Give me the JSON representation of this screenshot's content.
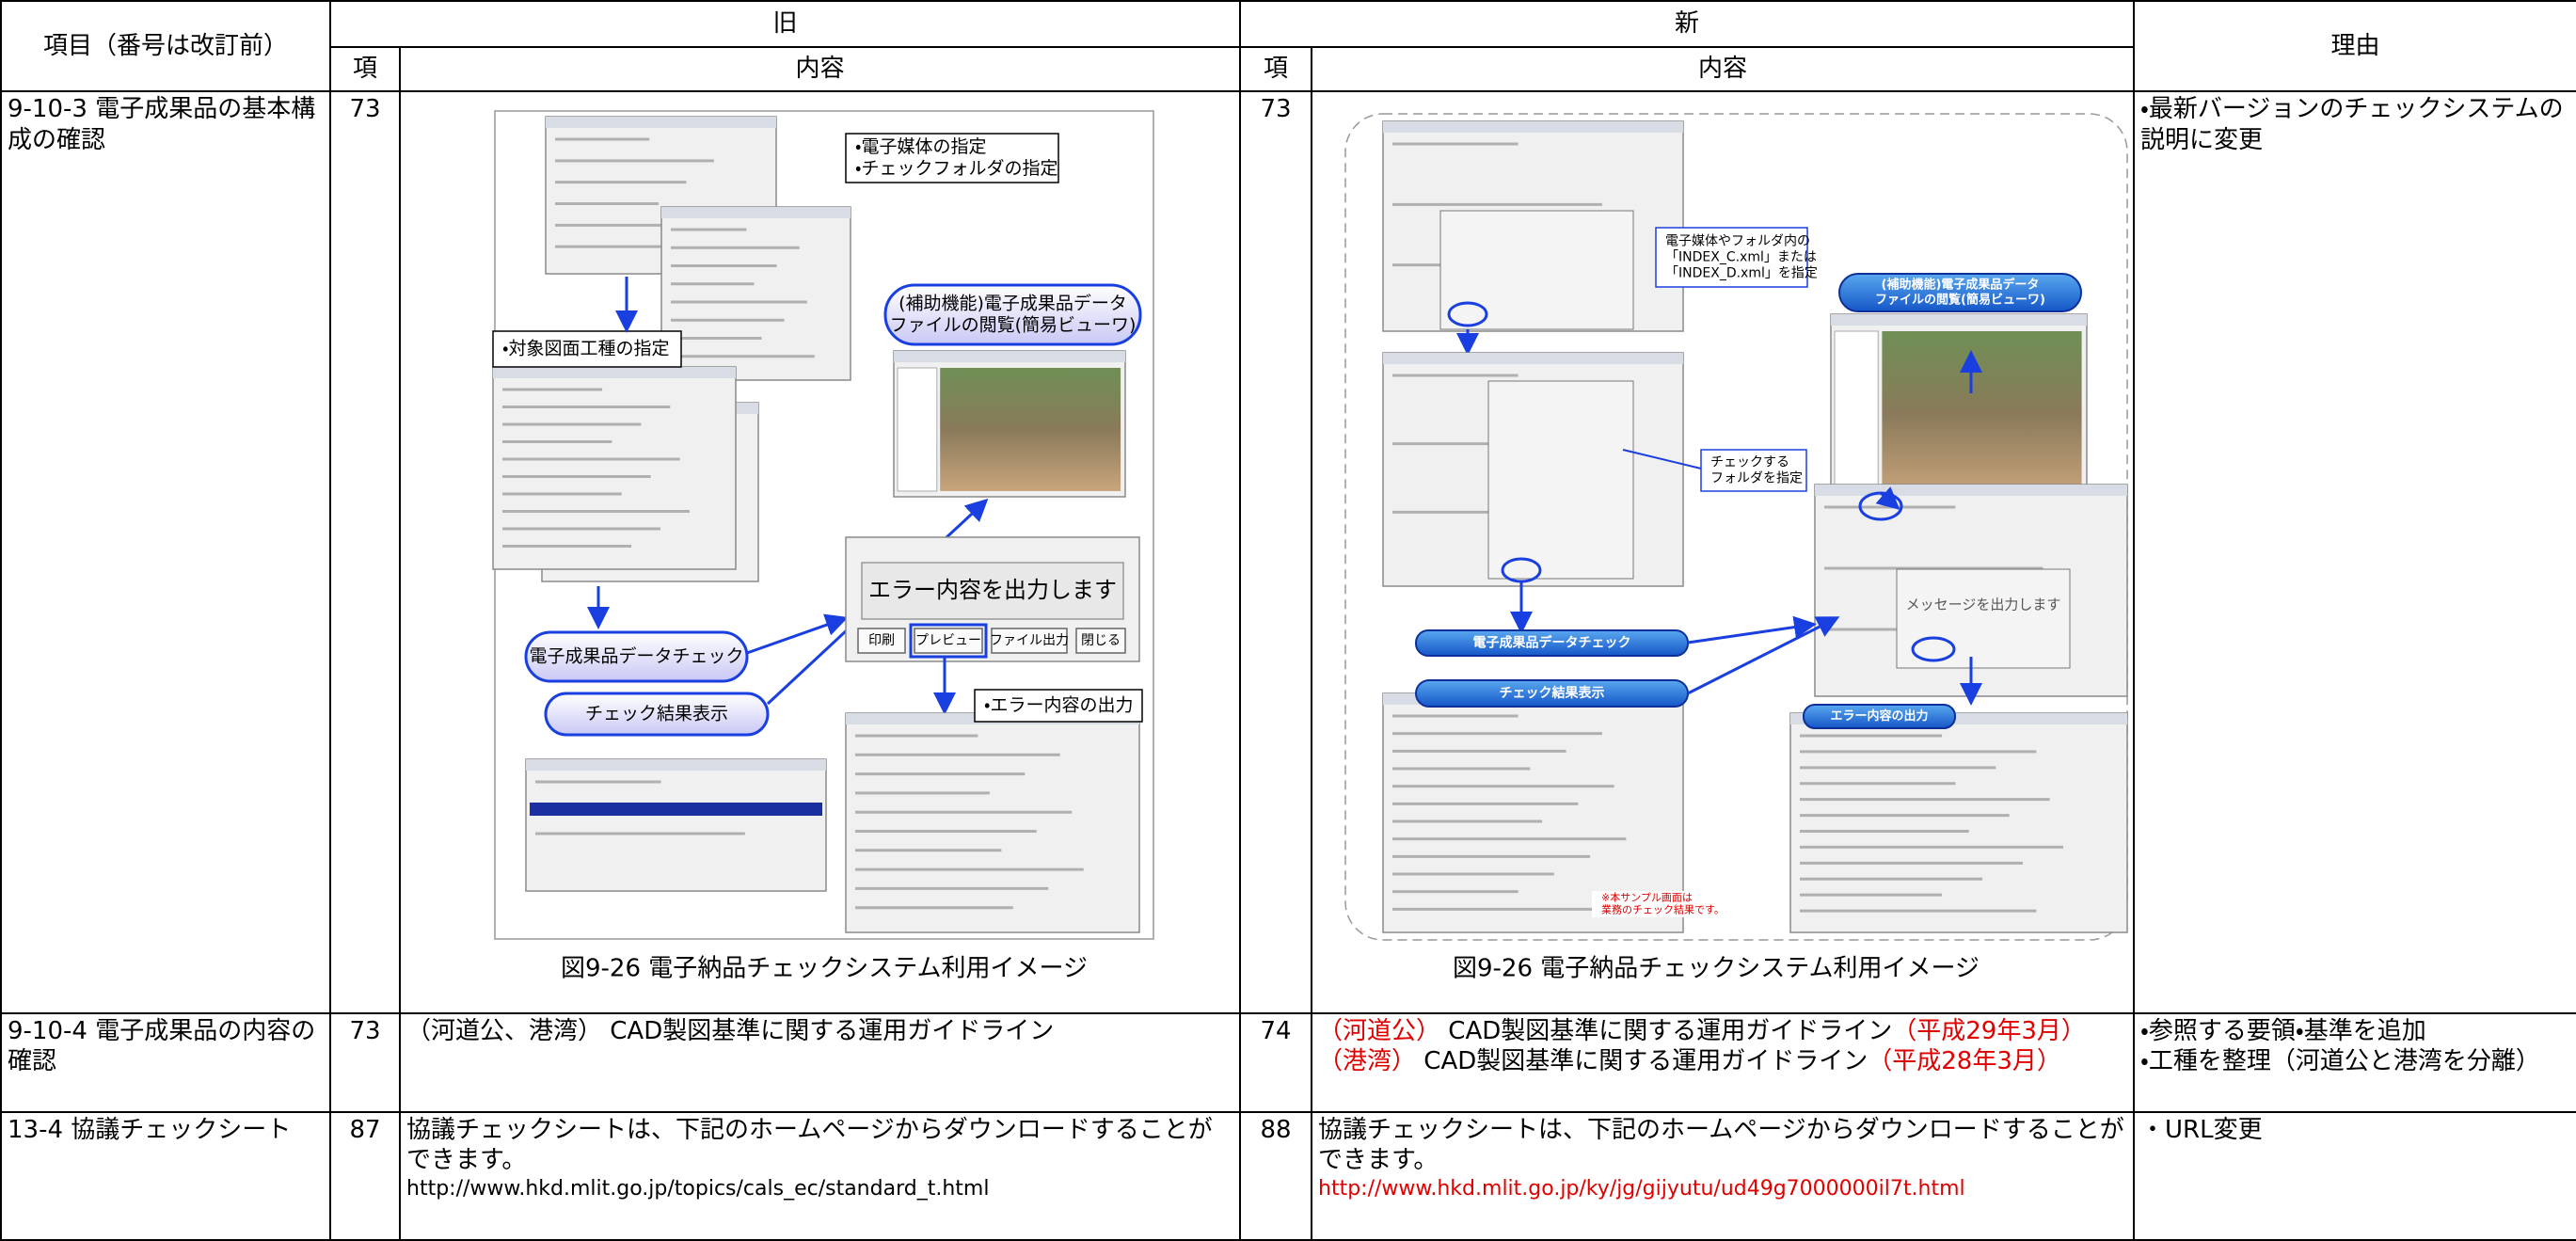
{
  "header": {
    "item": "項目（番号は改訂前）",
    "old": "旧",
    "new": "新",
    "reason": "理由",
    "old_no": "項",
    "old_content": "内容",
    "new_no": "項",
    "new_content": "内容"
  },
  "rows": [
    {
      "item": "9-10-3 電子成果品の基本構成の確認",
      "old_no": "73",
      "new_no": "73",
      "old_figure": {
        "media": [
          "・電子媒体の指定",
          "・チェックフォルダの指定"
        ],
        "drawing": "・対象図面工種の指定",
        "viewer": [
          "(補助機能)電子成果品データ",
          "ファイルの閲覧(簡易ビューワ)"
        ],
        "check": "電子成果品データチェック",
        "result": "チェック結果表示",
        "error_message": "エラー内容を出力します",
        "buttons": [
          "印刷",
          "プレビュー",
          "ファイル出力",
          "閉じる"
        ],
        "error_output": "・エラー内容の出力",
        "caption": "図9-26 電子納品チェックシステム利用イメージ"
      },
      "new_figure": {
        "media": [
          "電子媒体やフォルダ内の",
          "「INDEX_C.xml」または",
          "「INDEX_D.xml」を指定"
        ],
        "folder": [
          "チェックする",
          "フォルダを指定"
        ],
        "viewer": [
          "(補助機能)電子成果品データ",
          "ファイルの閲覧(簡易ビューワ)"
        ],
        "message": "メッセージを出力します",
        "check": "電子成果品データチェック",
        "result": "チェック結果表示",
        "error_output": "エラー内容の出力",
        "note": [
          "※本サンプル画面は",
          "業務のチェック結果です。"
        ],
        "caption": "図9-26 電子納品チェックシステム利用イメージ"
      },
      "reason": [
        "・最新バージョンのチェックシステムの説明に変更"
      ]
    },
    {
      "item": "9-10-4 電子成果品の内容の確認",
      "old_no": "73",
      "old_content": "（河道公、港湾） CAD製図基準に関する運用ガイドライン",
      "new_no": "74",
      "new_content": [
        [
          {
            "text": "（河道公）",
            "color": "red"
          },
          {
            "text": " CAD製図基準に関する運用ガイドライン",
            "color": "black"
          },
          {
            "text": "（平成29年3月）",
            "color": "red"
          }
        ],
        [
          {
            "text": "（港湾）",
            "color": "red"
          },
          {
            "text": " CAD製図基準に関する運用ガイドライン",
            "color": "black"
          },
          {
            "text": "（平成28年3月）",
            "color": "red"
          }
        ]
      ],
      "reason": [
        "・参照する要領・基準を追加",
        "・工種を整理（河道公と港湾を分離）"
      ]
    },
    {
      "item": "13-4 協議チェックシート",
      "old_no": "87",
      "old_content": "協議チェックシートは、下記のホームページからダウンロードすることができます。",
      "old_url": "http://www.hkd.mlit.go.jp/topics/cals_ec/standard_t.html",
      "new_no": "88",
      "new_content": "協議チェックシートは、下記のホームページからダウンロードすることができます。",
      "new_url": "http://www.hkd.mlit.go.jp/ky/jg/gijyutu/ud49g7000000il7t.html",
      "new_url_color": "red",
      "reason": [
        "・URL変更"
      ]
    }
  ]
}
